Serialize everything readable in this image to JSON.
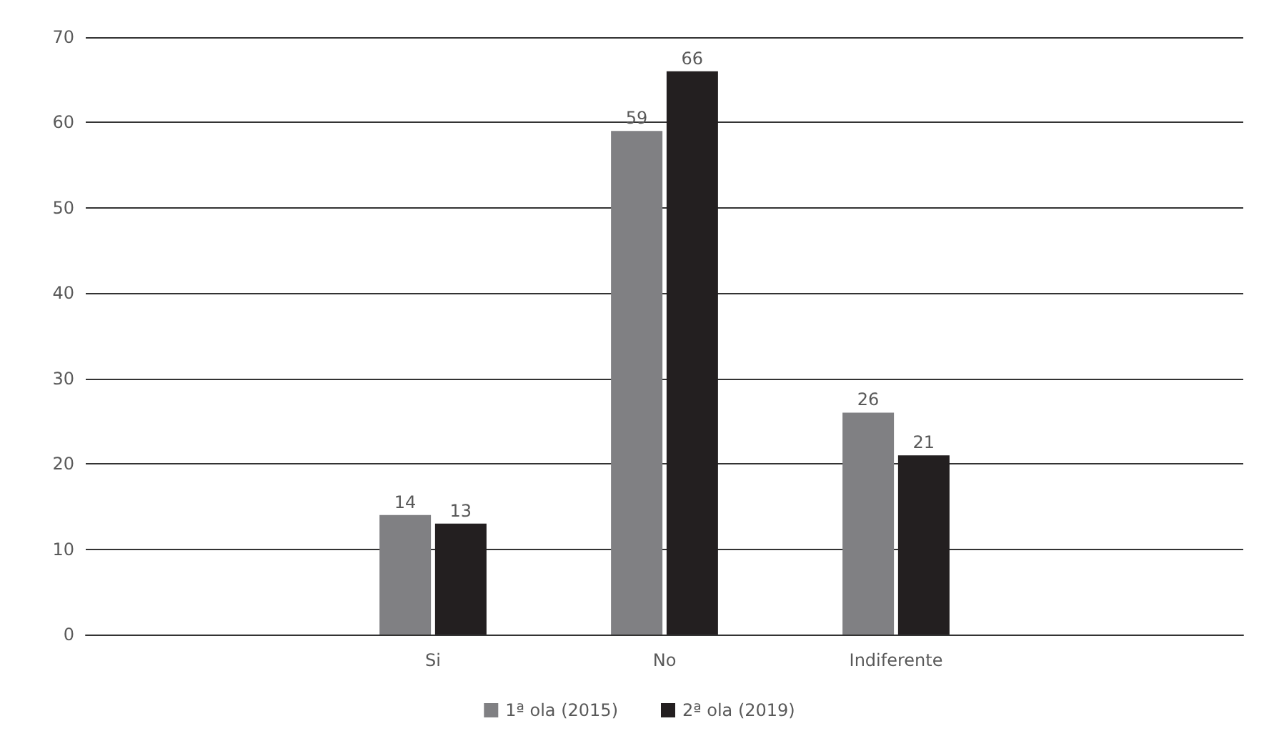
{
  "chart_data": {
    "type": "bar",
    "categories": [
      null,
      "Si",
      "No",
      "Indiferente",
      null
    ],
    "series": [
      {
        "name": "1ª ola (2015)",
        "color": "#808083",
        "values": [
          null,
          14,
          59,
          26,
          null
        ]
      },
      {
        "name": "2ª ola (2019)",
        "color": "#231f20",
        "values": [
          null,
          13,
          66,
          21,
          null
        ]
      }
    ],
    "ylim": [
      0,
      70
    ],
    "yticks": [
      0,
      10,
      20,
      30,
      40,
      50,
      60,
      70
    ],
    "grid": "y",
    "legend": "bottom",
    "data_labels": true
  }
}
